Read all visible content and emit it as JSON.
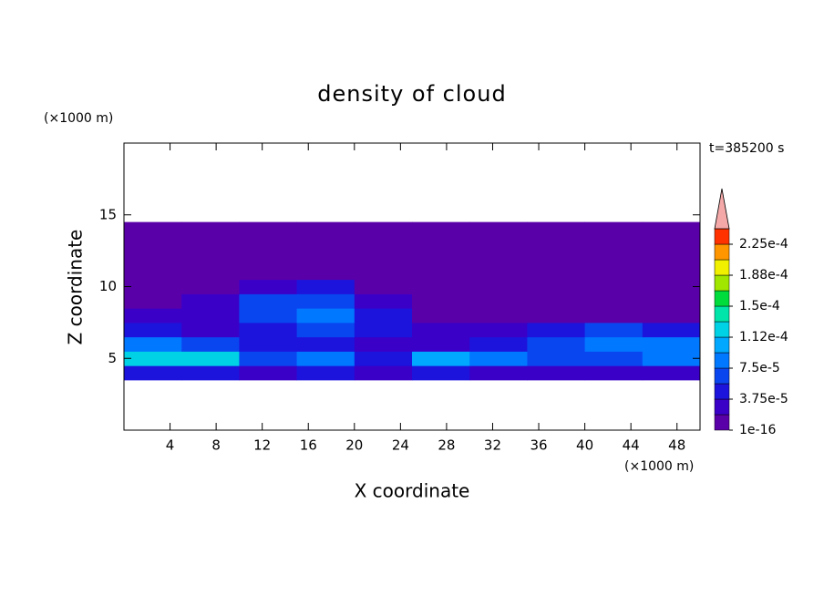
{
  "chart_data": {
    "type": "contour",
    "title": "density of cloud",
    "x_label": "X coordinate",
    "y_label": "Z coordinate",
    "x_unit": "(×1000 m)",
    "y_unit": "(×1000 m)",
    "time_label": "t=385200 s",
    "xlim": [
      0,
      50
    ],
    "ylim": [
      0,
      20
    ],
    "xticks": [
      4,
      8,
      12,
      16,
      20,
      24,
      28,
      32,
      36,
      40,
      44,
      48
    ],
    "yticks": [
      5,
      10,
      15
    ],
    "x_edges": [
      0,
      5,
      10,
      15,
      20,
      25,
      30,
      35,
      40,
      45,
      50
    ],
    "z_edges": [
      3.5,
      4.5,
      5.5,
      6.5,
      7.5,
      8.5,
      9.5,
      10.5,
      11.5,
      12.5,
      13.5,
      14.5
    ],
    "values": [
      [
        3.75e-05,
        3.75e-05,
        1.875e-05,
        3.75e-05,
        1.875e-05,
        3.75e-05,
        1.875e-05,
        1.875e-05,
        1.875e-05,
        1.875e-05
      ],
      [
        0.0001125,
        0.0001125,
        5.625e-05,
        7.5e-05,
        3.75e-05,
        9.375e-05,
        7.5e-05,
        5.625e-05,
        5.625e-05,
        7.5e-05
      ],
      [
        7.5e-05,
        5.625e-05,
        3.75e-05,
        3.75e-05,
        1.875e-05,
        1.875e-05,
        3.75e-05,
        5.625e-05,
        7.5e-05,
        7.5e-05
      ],
      [
        3.75e-05,
        1.875e-05,
        3.75e-05,
        5.625e-05,
        3.75e-05,
        1.875e-05,
        1.875e-05,
        3.75e-05,
        5.625e-05,
        3.75e-05
      ],
      [
        1.875e-05,
        1.875e-05,
        5.625e-05,
        7.5e-05,
        3.75e-05,
        1e-16,
        1e-16,
        1e-16,
        1e-16,
        1e-16
      ],
      [
        1e-16,
        1.875e-05,
        5.625e-05,
        5.625e-05,
        1.875e-05,
        1e-16,
        1e-16,
        1e-16,
        1e-16,
        1e-16
      ],
      [
        1e-16,
        1e-16,
        1.875e-05,
        3.75e-05,
        1e-16,
        1e-16,
        1e-16,
        1e-16,
        1e-16,
        1e-16
      ],
      [
        1e-16,
        1e-16,
        1e-16,
        1e-16,
        1e-16,
        1e-16,
        1e-16,
        1e-16,
        1e-16,
        1e-16
      ],
      [
        1e-16,
        1e-16,
        1e-16,
        1e-16,
        1e-16,
        1e-16,
        1e-16,
        1e-16,
        1e-16,
        1e-16
      ],
      [
        1e-16,
        1e-16,
        1e-16,
        1e-16,
        1e-16,
        1e-16,
        1e-16,
        1e-16,
        1e-16,
        1e-16
      ],
      [
        1e-16,
        1e-16,
        1e-16,
        1e-16,
        1e-16,
        1e-16,
        1e-16,
        1e-16,
        1e-16,
        1e-16
      ]
    ],
    "colorbar": {
      "levels": [
        1e-16,
        1.875e-05,
        3.75e-05,
        5.625e-05,
        7.5e-05,
        9.375e-05,
        0.0001125,
        0.00013125,
        0.00015,
        0.00016875,
        0.0001875,
        0.00020625,
        0.000225,
        0.00024375
      ],
      "colors": [
        "#5a00a8",
        "#3a00c8",
        "#1c14dc",
        "#0a46f0",
        "#0078ff",
        "#00a8ff",
        "#00d2e6",
        "#00e6aa",
        "#00dc3c",
        "#a0e600",
        "#f0f000",
        "#ff9600",
        "#ff3200"
      ],
      "extend_color": "#f4a8a8",
      "ticks": [
        {
          "value": 1e-16,
          "label": "1e-16"
        },
        {
          "value": 3.75e-05,
          "label": "3.75e-5"
        },
        {
          "value": 7.5e-05,
          "label": "7.5e-5"
        },
        {
          "value": 0.0001125,
          "label": "1.12e-4"
        },
        {
          "value": 0.00015,
          "label": "1.5e-4"
        },
        {
          "value": 0.0001875,
          "label": "1.88e-4"
        },
        {
          "value": 0.000225,
          "label": "2.25e-4"
        }
      ]
    }
  }
}
